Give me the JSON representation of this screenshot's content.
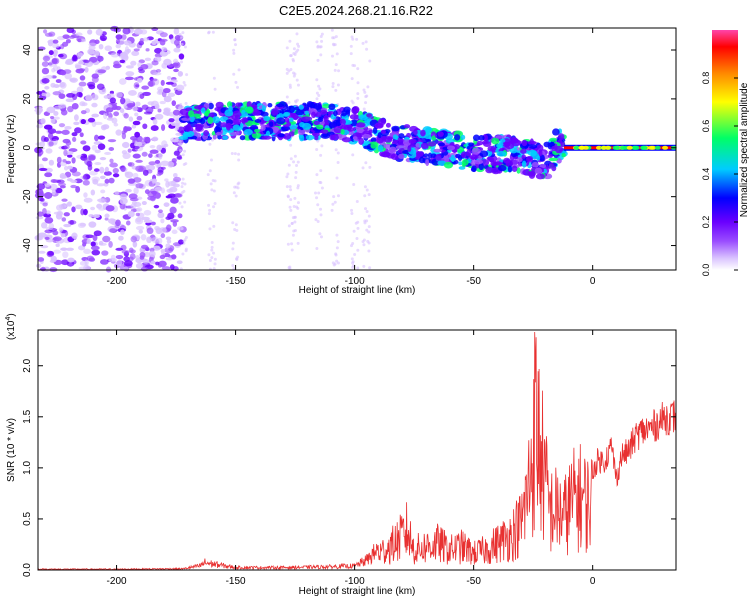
{
  "title": "C2E5.2024.268.21.16.R22",
  "chart_data": [
    {
      "type": "heatmap",
      "xlabel": "Height of straight line (km)",
      "ylabel": "Frequency (Hz)",
      "xlim": [
        -233,
        35
      ],
      "ylim": [
        -50,
        49
      ],
      "xticks": [
        -200,
        -150,
        -100,
        -50,
        0
      ],
      "yticks": [
        -40,
        -20,
        0,
        20,
        40
      ],
      "colorbar": {
        "label": "Normalized spectral amplitude",
        "range": [
          0.0,
          1.0
        ],
        "ticks": [
          "0.0",
          "0.2",
          "0.4",
          "0.6",
          "0.8"
        ],
        "tick_values": [
          0.0,
          0.2,
          0.4,
          0.6,
          0.8
        ]
      },
      "features": {
        "diffuse_noise_region_x": [
          -233,
          -172
        ],
        "speckled_band_center_freq": [
          [
            -172,
            10
          ],
          [
            -150,
            11
          ],
          [
            -110,
            11
          ],
          [
            -100,
            9
          ],
          [
            -85,
            3
          ],
          [
            -70,
            1
          ],
          [
            -50,
            -2
          ],
          [
            -30,
            -3
          ],
          [
            -20,
            -6
          ],
          [
            -15,
            0
          ],
          [
            0,
            0
          ],
          [
            35,
            0
          ]
        ],
        "coherent_line_x": [
          -12,
          35
        ],
        "coherent_line_freq": 0
      },
      "colormap": [
        "#ffffff",
        "#d9c2ff",
        "#9a4dff",
        "#6a00ff",
        "#0000ff",
        "#00ccff",
        "#00ff66",
        "#ffff00",
        "#ff8800",
        "#ff0000",
        "#ff44aa"
      ]
    },
    {
      "type": "line",
      "xlabel": "Height of straight line (km)",
      "ylabel": "SNR (10 * v/v)",
      "exponent_label": "(x10",
      "exponent_power": "4",
      "exponent_close": ")",
      "xlim": [
        -233,
        35
      ],
      "ylim": [
        0,
        2.35
      ],
      "xticks": [
        -200,
        -150,
        -100,
        -50,
        0
      ],
      "yticks": [
        "0.0",
        "0.5",
        "1.0",
        "1.5",
        "2.0"
      ],
      "ytick_values": [
        0.0,
        0.5,
        1.0,
        1.5,
        2.0
      ],
      "series": [
        {
          "color": "#e83030",
          "x": [
            -233,
            -200,
            -172,
            -165,
            -163,
            -150,
            -130,
            -110,
            -100,
            -95,
            -90,
            -85,
            -80,
            -78,
            -75,
            -70,
            -65,
            -60,
            -55,
            -50,
            -45,
            -40,
            -35,
            -30,
            -27,
            -25,
            -24,
            -22,
            -20,
            -18,
            -15,
            -12,
            -10,
            -8,
            -5,
            -2,
            0,
            2,
            5,
            8,
            10,
            12,
            15,
            18,
            20,
            25,
            30,
            35
          ],
          "y": [
            0.01,
            0.01,
            0.015,
            0.05,
            0.09,
            0.03,
            0.03,
            0.04,
            0.05,
            0.12,
            0.25,
            0.35,
            0.5,
            0.6,
            0.3,
            0.35,
            0.4,
            0.3,
            0.35,
            0.25,
            0.3,
            0.4,
            0.5,
            0.7,
            1.2,
            1.9,
            2.3,
            1.8,
            1.3,
            0.9,
            0.9,
            0.8,
            0.95,
            1.05,
            1.1,
            1.0,
            1.05,
            1.15,
            1.15,
            1.3,
            0.95,
            1.2,
            1.25,
            1.4,
            1.45,
            1.5,
            1.6,
            1.62
          ]
        }
      ]
    }
  ]
}
